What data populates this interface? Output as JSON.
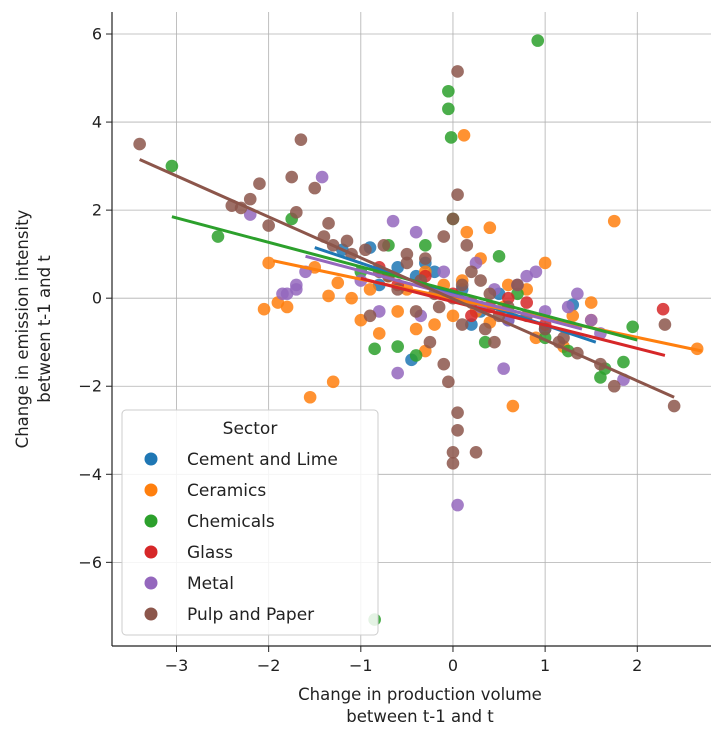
{
  "chart_data": {
    "type": "scatter",
    "xlabel": [
      "Change in production volume",
      "between t-1 and t"
    ],
    "ylabel": [
      "Change in emission intensity",
      "between t-1 and t"
    ],
    "xlim": [
      -3.7,
      2.8
    ],
    "ylim": [
      -7.9,
      6.5
    ],
    "xticks": [
      -3,
      -2,
      -1,
      0,
      1,
      2
    ],
    "yticks": [
      -6,
      -4,
      -2,
      0,
      2,
      4,
      6
    ],
    "xtick_labels": [
      "−3",
      "−2",
      "−1",
      "0",
      "1",
      "2"
    ],
    "ytick_labels": [
      "−6",
      "−4",
      "−2",
      "0",
      "2",
      "4",
      "6"
    ],
    "grid": true,
    "legend": {
      "title": "Sector",
      "placement": "lower-left"
    },
    "series": [
      {
        "name": "Cement and Lime",
        "color": "#1f77b4",
        "regression": {
          "x": [
            -1.5,
            1.55
          ],
          "y": [
            1.15,
            -1.0
          ]
        },
        "points": [
          [
            -1.2,
            1.1
          ],
          [
            -0.9,
            1.15
          ],
          [
            -0.6,
            0.7
          ],
          [
            -0.4,
            0.5
          ],
          [
            -0.2,
            0.6
          ],
          [
            0.1,
            0.2
          ],
          [
            0.3,
            -0.3
          ],
          [
            0.6,
            -0.5
          ],
          [
            1.0,
            -0.7
          ],
          [
            1.3,
            -0.15
          ],
          [
            -0.45,
            -1.4
          ],
          [
            -0.3,
            0.8
          ],
          [
            0.5,
            0.1
          ],
          [
            -0.8,
            0.3
          ],
          [
            0.2,
            -0.6
          ]
        ]
      },
      {
        "name": "Ceramics",
        "color": "#ff7f0e",
        "regression": {
          "x": [
            -1.95,
            2.7
          ],
          "y": [
            0.85,
            -1.2
          ]
        },
        "points": [
          [
            2.65,
            -1.15
          ],
          [
            1.75,
            1.75
          ],
          [
            1.5,
            -0.1
          ],
          [
            1.5,
            -0.5
          ],
          [
            1.3,
            -0.4
          ],
          [
            1.0,
            0.8
          ],
          [
            0.9,
            -0.9
          ],
          [
            0.65,
            -2.45
          ],
          [
            0.55,
            -0.2
          ],
          [
            0.4,
            -0.55
          ],
          [
            0.4,
            1.6
          ],
          [
            0.3,
            0.9
          ],
          [
            0.25,
            -0.3
          ],
          [
            0.15,
            1.5
          ],
          [
            0.12,
            3.7
          ],
          [
            0.1,
            0.4
          ],
          [
            0.0,
            -0.4
          ],
          [
            -0.1,
            0.3
          ],
          [
            -0.2,
            -0.6
          ],
          [
            -0.3,
            0.6
          ],
          [
            -0.4,
            -0.7
          ],
          [
            -0.5,
            0.2
          ],
          [
            -0.6,
            -0.3
          ],
          [
            -0.7,
            0.5
          ],
          [
            -0.8,
            -0.8
          ],
          [
            -0.9,
            0.2
          ],
          [
            -1.1,
            0.0
          ],
          [
            -1.25,
            0.35
          ],
          [
            -1.3,
            -1.9
          ],
          [
            -1.35,
            0.05
          ],
          [
            -1.55,
            -2.25
          ],
          [
            -1.8,
            -0.2
          ],
          [
            -1.9,
            -0.1
          ],
          [
            -2.05,
            -0.25
          ],
          [
            -2.0,
            0.8
          ],
          [
            -1.5,
            0.7
          ],
          [
            -1.0,
            -0.5
          ],
          [
            0.8,
            0.2
          ],
          [
            1.2,
            -1.1
          ],
          [
            -0.3,
            -1.2
          ],
          [
            0.6,
            0.3
          ]
        ]
      },
      {
        "name": "Chemicals",
        "color": "#2ca02c",
        "regression": {
          "x": [
            -3.05,
            2.0
          ],
          "y": [
            1.85,
            -0.95
          ]
        },
        "points": [
          [
            0.92,
            5.85
          ],
          [
            -0.05,
            4.7
          ],
          [
            -0.05,
            4.3
          ],
          [
            -0.02,
            3.65
          ],
          [
            -3.05,
            3.0
          ],
          [
            -2.55,
            1.4
          ],
          [
            -1.75,
            1.8
          ],
          [
            -0.85,
            -1.15
          ],
          [
            -0.85,
            -7.3
          ],
          [
            -0.6,
            -1.1
          ],
          [
            -0.4,
            -1.3
          ],
          [
            0.35,
            -1.0
          ],
          [
            0.5,
            0.95
          ],
          [
            1.25,
            -1.2
          ],
          [
            1.6,
            -1.8
          ],
          [
            1.65,
            -1.6
          ],
          [
            1.85,
            -1.45
          ],
          [
            1.95,
            -0.65
          ],
          [
            0.7,
            0.1
          ],
          [
            -0.3,
            1.2
          ],
          [
            -1.0,
            0.6
          ],
          [
            0.0,
            1.8
          ],
          [
            1.0,
            -0.9
          ],
          [
            -0.7,
            1.2
          ]
        ]
      },
      {
        "name": "Glass",
        "color": "#d62728",
        "regression": {
          "x": [
            -1.0,
            2.3
          ],
          "y": [
            0.45,
            -1.3
          ]
        },
        "points": [
          [
            2.28,
            -0.25
          ],
          [
            1.0,
            -0.6
          ],
          [
            0.8,
            -0.1
          ],
          [
            0.6,
            0.0
          ],
          [
            0.4,
            -0.2
          ],
          [
            0.0,
            0.1
          ],
          [
            -0.3,
            0.5
          ],
          [
            -0.6,
            0.3
          ],
          [
            -0.8,
            0.7
          ],
          [
            0.2,
            -0.4
          ]
        ]
      },
      {
        "name": "Metal",
        "color": "#9467bd",
        "regression": {
          "x": [
            -1.6,
            1.4
          ],
          "y": [
            0.95,
            -0.7
          ]
        },
        "points": [
          [
            -1.42,
            2.75
          ],
          [
            -1.6,
            0.6
          ],
          [
            -1.7,
            0.3
          ],
          [
            -1.8,
            0.1
          ],
          [
            -1.85,
            0.1
          ],
          [
            -1.7,
            0.2
          ],
          [
            -0.65,
            1.75
          ],
          [
            -0.4,
            1.5
          ],
          [
            -0.6,
            -1.7
          ],
          [
            0.05,
            -4.7
          ],
          [
            0.1,
            0.0
          ],
          [
            0.3,
            -0.2
          ],
          [
            0.55,
            -1.6
          ],
          [
            0.7,
            0.3
          ],
          [
            0.8,
            0.5
          ],
          [
            1.0,
            -0.3
          ],
          [
            1.25,
            -0.2
          ],
          [
            1.35,
            0.1
          ],
          [
            1.5,
            -0.5
          ],
          [
            1.6,
            -0.8
          ],
          [
            1.85,
            -1.85
          ],
          [
            -2.2,
            1.9
          ],
          [
            -0.1,
            0.6
          ],
          [
            0.25,
            0.8
          ],
          [
            -0.35,
            -0.4
          ],
          [
            0.6,
            -0.5
          ],
          [
            -1.0,
            0.4
          ],
          [
            0.9,
            0.6
          ],
          [
            -0.8,
            -0.3
          ],
          [
            0.45,
            0.2
          ]
        ]
      },
      {
        "name": "Pulp and Paper",
        "color": "#8c564b",
        "regression": {
          "x": [
            -3.4,
            2.4
          ],
          "y": [
            3.15,
            -2.25
          ]
        },
        "points": [
          [
            -3.4,
            3.5
          ],
          [
            -1.65,
            3.6
          ],
          [
            -1.75,
            2.75
          ],
          [
            -1.5,
            2.5
          ],
          [
            -2.1,
            2.6
          ],
          [
            -2.2,
            2.25
          ],
          [
            -2.3,
            2.05
          ],
          [
            -2.4,
            2.1
          ],
          [
            -2.0,
            1.65
          ],
          [
            -1.7,
            1.95
          ],
          [
            -1.4,
            1.4
          ],
          [
            -1.35,
            1.7
          ],
          [
            -1.15,
            1.3
          ],
          [
            -0.95,
            1.1
          ],
          [
            -0.75,
            1.2
          ],
          [
            -0.5,
            0.8
          ],
          [
            -0.3,
            0.9
          ],
          [
            -0.1,
            1.4
          ],
          [
            0.0,
            1.8
          ],
          [
            0.05,
            5.15
          ],
          [
            0.05,
            2.35
          ],
          [
            0.05,
            -2.6
          ],
          [
            0.05,
            -3.0
          ],
          [
            0.0,
            -3.5
          ],
          [
            0.0,
            -3.75
          ],
          [
            0.25,
            -3.5
          ],
          [
            -0.1,
            -1.5
          ],
          [
            0.2,
            0.6
          ],
          [
            0.35,
            -0.7
          ],
          [
            0.5,
            -0.4
          ],
          [
            0.7,
            0.3
          ],
          [
            1.0,
            -0.7
          ],
          [
            1.15,
            -1.0
          ],
          [
            1.35,
            -1.25
          ],
          [
            1.6,
            -1.5
          ],
          [
            1.75,
            -2.0
          ],
          [
            2.3,
            -0.6
          ],
          [
            2.4,
            -2.45
          ],
          [
            -1.1,
            1.0
          ],
          [
            -0.8,
            0.6
          ],
          [
            -0.6,
            0.2
          ],
          [
            -0.4,
            -0.3
          ],
          [
            -0.2,
            0.1
          ],
          [
            0.1,
            -0.6
          ],
          [
            0.3,
            0.4
          ],
          [
            0.6,
            -0.2
          ],
          [
            -0.9,
            -0.4
          ],
          [
            0.45,
            -1.0
          ],
          [
            0.15,
            1.2
          ],
          [
            -0.25,
            -1.0
          ],
          [
            -0.5,
            1.0
          ],
          [
            0.0,
            0.0
          ],
          [
            0.1,
            0.3
          ],
          [
            -0.15,
            -0.2
          ],
          [
            0.2,
            -0.1
          ],
          [
            -0.35,
            0.4
          ],
          [
            0.4,
            0.1
          ],
          [
            -0.7,
            0.5
          ],
          [
            0.8,
            -0.4
          ],
          [
            -1.3,
            1.2
          ],
          [
            1.2,
            -0.9
          ],
          [
            -0.05,
            -1.9
          ]
        ]
      }
    ]
  }
}
